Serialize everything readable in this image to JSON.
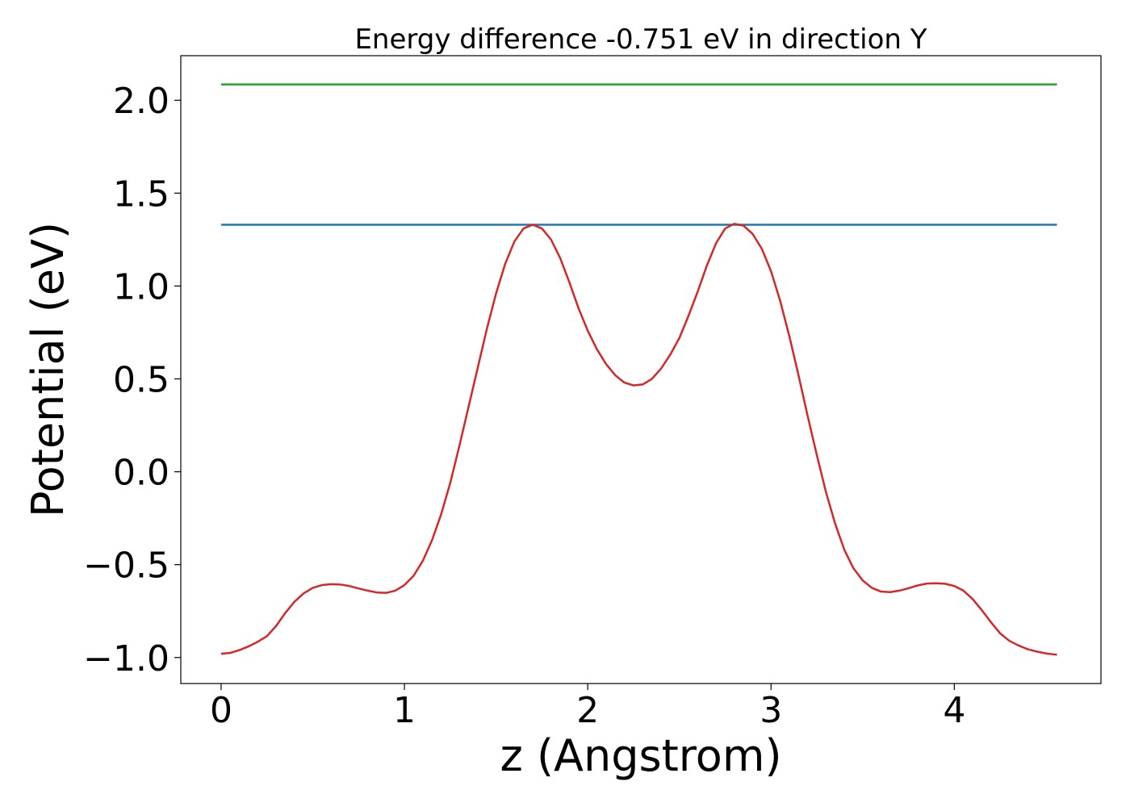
{
  "chart_data": {
    "type": "line",
    "title": "Energy difference -0.751 eV in direction Y",
    "xlabel": "z (Angstrom)",
    "ylabel": "Potential (eV)",
    "xlim": [
      -0.22,
      4.8
    ],
    "ylim": [
      -1.14,
      2.24
    ],
    "x_ticks": [
      0,
      1,
      2,
      3,
      4
    ],
    "x_tick_labels": [
      "0",
      "1",
      "2",
      "3",
      "4"
    ],
    "y_ticks": [
      -1.0,
      -0.5,
      0.0,
      0.5,
      1.0,
      1.5,
      2.0
    ],
    "y_tick_labels": [
      "−1.0",
      "−0.5",
      "0.0",
      "0.5",
      "1.0",
      "1.5",
      "2.0"
    ],
    "grid": false,
    "series": [
      {
        "color": "#2ca02c",
        "x": [
          0.0,
          4.56
        ],
        "y": [
          2.085,
          2.085
        ]
      },
      {
        "color": "#1f77b4",
        "x": [
          0.0,
          4.56
        ],
        "y": [
          1.33,
          1.33
        ]
      },
      {
        "color": "#d62728",
        "x": [
          0.0,
          0.05,
          0.1,
          0.15,
          0.2,
          0.25,
          0.3,
          0.35,
          0.4,
          0.45,
          0.5,
          0.55,
          0.6,
          0.65,
          0.7,
          0.75,
          0.8,
          0.85,
          0.9,
          0.95,
          1.0,
          1.05,
          1.1,
          1.15,
          1.2,
          1.25,
          1.3,
          1.35,
          1.4,
          1.45,
          1.5,
          1.55,
          1.6,
          1.65,
          1.7,
          1.75,
          1.8,
          1.85,
          1.9,
          1.95,
          2.0,
          2.05,
          2.1,
          2.15,
          2.2,
          2.25,
          2.3,
          2.35,
          2.4,
          2.45,
          2.5,
          2.55,
          2.6,
          2.65,
          2.7,
          2.75,
          2.8,
          2.85,
          2.9,
          2.95,
          3.0,
          3.05,
          3.1,
          3.15,
          3.2,
          3.25,
          3.3,
          3.35,
          3.4,
          3.45,
          3.5,
          3.55,
          3.6,
          3.65,
          3.7,
          3.75,
          3.8,
          3.85,
          3.9,
          3.95,
          4.0,
          4.05,
          4.1,
          4.15,
          4.2,
          4.25,
          4.3,
          4.35,
          4.4,
          4.45,
          4.5,
          4.56
        ],
        "y": [
          -0.98,
          -0.975,
          -0.96,
          -0.94,
          -0.915,
          -0.885,
          -0.83,
          -0.76,
          -0.7,
          -0.655,
          -0.625,
          -0.61,
          -0.605,
          -0.607,
          -0.615,
          -0.628,
          -0.64,
          -0.65,
          -0.652,
          -0.64,
          -0.61,
          -0.56,
          -0.48,
          -0.37,
          -0.23,
          -0.06,
          0.14,
          0.35,
          0.56,
          0.77,
          0.96,
          1.12,
          1.24,
          1.31,
          1.33,
          1.31,
          1.25,
          1.15,
          1.02,
          0.88,
          0.76,
          0.66,
          0.58,
          0.52,
          0.48,
          0.465,
          0.47,
          0.5,
          0.555,
          0.63,
          0.72,
          0.84,
          0.97,
          1.11,
          1.23,
          1.31,
          1.335,
          1.325,
          1.28,
          1.2,
          1.08,
          0.92,
          0.73,
          0.52,
          0.3,
          0.09,
          -0.11,
          -0.28,
          -0.42,
          -0.52,
          -0.585,
          -0.625,
          -0.645,
          -0.648,
          -0.64,
          -0.627,
          -0.612,
          -0.602,
          -0.6,
          -0.603,
          -0.615,
          -0.64,
          -0.685,
          -0.745,
          -0.81,
          -0.87,
          -0.91,
          -0.935,
          -0.955,
          -0.968,
          -0.978,
          -0.985
        ]
      }
    ]
  }
}
